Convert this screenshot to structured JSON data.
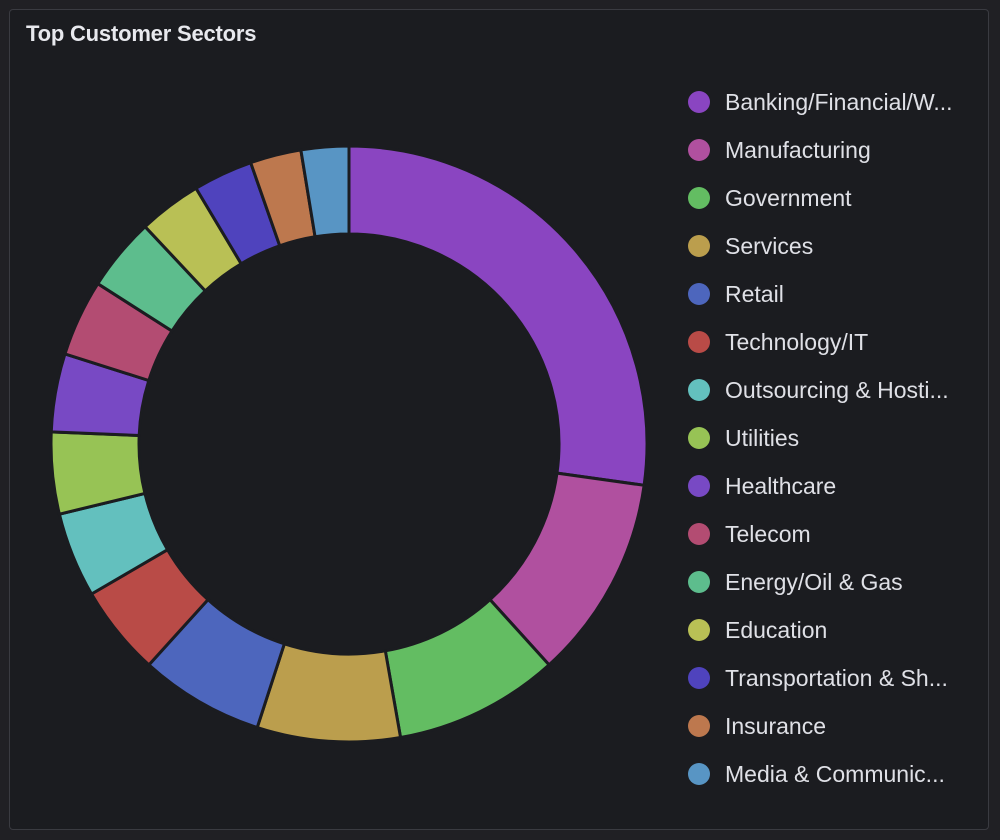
{
  "panel": {
    "title": "Top Customer Sectors"
  },
  "chart_data": {
    "type": "pie",
    "donut": true,
    "legend_position": "right",
    "categories": [
      "Banking/Financial/W...",
      "Manufacturing",
      "Government",
      "Services",
      "Retail",
      "Technology/IT",
      "Outsourcing & Hosti...",
      "Utilities",
      "Healthcare",
      "Telecom",
      "Energy/Oil & Gas",
      "Education",
      "Transportation & Sh...",
      "Insurance",
      "Media & Communic..."
    ],
    "values": [
      29.5,
      12.0,
      9.7,
      8.4,
      7.3,
      5.3,
      5.0,
      4.8,
      4.6,
      4.5,
      4.3,
      3.7,
      3.5,
      3.0,
      2.8
    ],
    "colors": [
      "#8a45c1",
      "#b0509f",
      "#63bd62",
      "#bb9e4d",
      "#4d66bd",
      "#b94b47",
      "#63c0be",
      "#97c355",
      "#7849c4",
      "#b34c72",
      "#5dbd8d",
      "#b9c055",
      "#4f43bd",
      "#bd784e",
      "#5895c4"
    ]
  }
}
